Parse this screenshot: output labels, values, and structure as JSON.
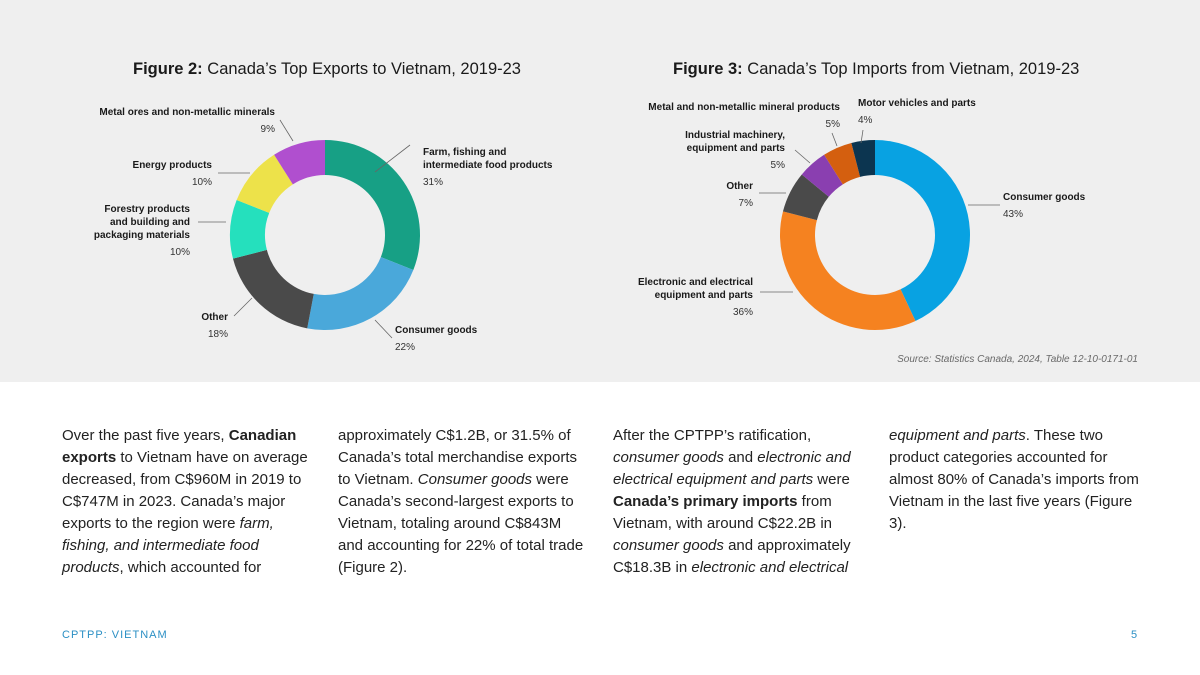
{
  "chart_data": [
    {
      "type": "pie",
      "variant": "donut",
      "title_bold": "Figure 2:",
      "title_rest": " Canada’s Top Exports to Vietnam, 2019-23",
      "slices": [
        {
          "label": [
            "Farm, fishing and",
            "intermediate food products"
          ],
          "value": 31,
          "pct_label": "31%",
          "color": "#17a085"
        },
        {
          "label": [
            "Consumer goods"
          ],
          "value": 22,
          "pct_label": "22%",
          "color": "#4aa8da"
        },
        {
          "label": [
            "Other"
          ],
          "value": 18,
          "pct_label": "18%",
          "color": "#4a4a4a"
        },
        {
          "label": [
            "Forestry products",
            "and building and",
            "packaging materials"
          ],
          "value": 10,
          "pct_label": "10%",
          "color": "#25e0bd"
        },
        {
          "label": [
            "Energy products"
          ],
          "value": 10,
          "pct_label": "10%",
          "color": "#ede24a"
        },
        {
          "label": [
            "Metal ores and non-metallic minerals"
          ],
          "value": 9,
          "pct_label": "9%",
          "color": "#b04fcf"
        }
      ]
    },
    {
      "type": "pie",
      "variant": "donut",
      "title_bold": "Figure 3:",
      "title_rest": " Canada’s Top Imports from Vietnam, 2019-23",
      "slices": [
        {
          "label": [
            "Consumer goods"
          ],
          "value": 43,
          "pct_label": "43%",
          "color": "#08a2e2"
        },
        {
          "label": [
            "Electronic and electrical",
            "equipment and parts"
          ],
          "value": 36,
          "pct_label": "36%",
          "color": "#f58220"
        },
        {
          "label": [
            "Other"
          ],
          "value": 7,
          "pct_label": "7%",
          "color": "#4a4a4a"
        },
        {
          "label": [
            "Industrial machinery,",
            "equipment and parts"
          ],
          "value": 5,
          "pct_label": "5%",
          "color": "#8a3fb0"
        },
        {
          "label": [
            "Metal and non-metallic mineral products"
          ],
          "value": 5,
          "pct_label": "5%",
          "color": "#d45f0f"
        },
        {
          "label": [
            "Motor vehicles and parts"
          ],
          "value": 4,
          "pct_label": "4%",
          "color": "#0c3550"
        }
      ]
    }
  ],
  "source": "Source: Statistics Canada, 2024, Table 12-10-0171-01",
  "body": {
    "col1": [
      {
        "t": "Over the past five years, "
      },
      {
        "t": "Canadian exports",
        "s": "b"
      },
      {
        "t": " to Vietnam have on average decreased, from C$960M in 2019 to C$747M in 2023. Canada’s major exports to the region were "
      },
      {
        "t": "farm, fishing, and intermediate food products",
        "s": "i"
      },
      {
        "t": ", which accounted for"
      }
    ],
    "col2": [
      {
        "t": "approximately C$1.2B, or 31.5% of Canada’s total merchandise exports to Vietnam. "
      },
      {
        "t": "Consumer goods",
        "s": "i"
      },
      {
        "t": " were Canada’s second-largest exports to Vietnam, totaling around C$843M and accounting for 22% of total trade (Figure 2)."
      }
    ],
    "col3": [
      {
        "t": "After the CPTPP’s ratification, "
      },
      {
        "t": "consumer goods",
        "s": "i"
      },
      {
        "t": " and "
      },
      {
        "t": "electronic and electrical equipment and parts",
        "s": "i"
      },
      {
        "t": " were "
      },
      {
        "t": "Canada’s primary imports",
        "s": "b"
      },
      {
        "t": " from Vietnam, with around C$22.2B in "
      },
      {
        "t": "consumer goods",
        "s": "i"
      },
      {
        "t": " and approximately C$18.3B in "
      },
      {
        "t": "electronic and electrical",
        "s": "i"
      }
    ],
    "col4": [
      {
        "t": "equipment and parts",
        "s": "i"
      },
      {
        "t": ". These two product categories accounted for almost 80% of Canada’s imports from Vietnam in the last five years (Figure 3)."
      }
    ]
  },
  "footer": {
    "left": "CPTPP: VIETNAM",
    "page": "5"
  }
}
